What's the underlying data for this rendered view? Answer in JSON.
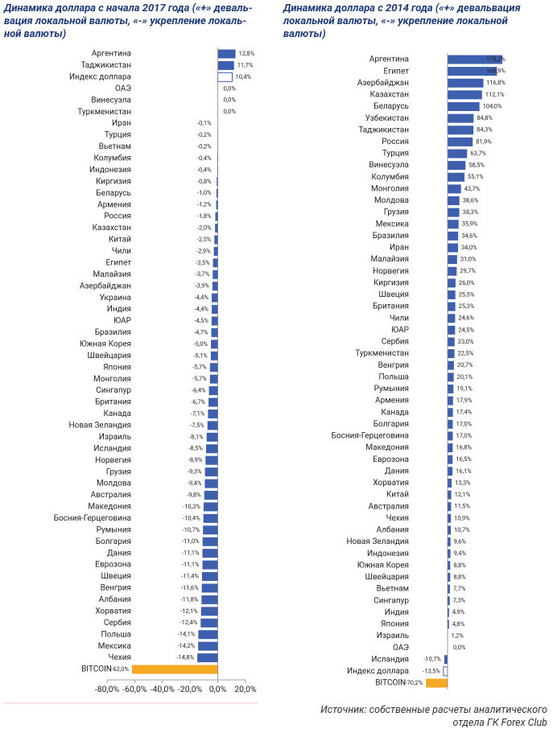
{
  "chart_data": [
    {
      "type": "bar",
      "orientation": "horizontal",
      "title": [
        "Динамика доллара с начала 2017 года («+» деваль-",
        "вация локальной валюты, «-» укрепление локаль-",
        "ной валюты)"
      ],
      "categories": [
        "Аргентина",
        "Таджикистан",
        "Индекс доллара",
        "ОАЭ",
        "Винесуэла",
        "Туркменистан",
        "Иран",
        "Турция",
        "Вьетнам",
        "Колумбия",
        "Индонезия",
        "Киргизия",
        "Беларусь",
        "Армения",
        "Россия",
        "Казахстан",
        "Китай",
        "Чили",
        "Египет",
        "Малайзия",
        "Азербайджан",
        "Украина",
        "Индия",
        "ЮАР",
        "Бразилия",
        "Южная Корея",
        "Швейцария",
        "Япония",
        "Монголия",
        "Сингапур",
        "Британия",
        "Канада",
        "Новая Зеландия",
        "Израиль",
        "Исландия",
        "Норвегия",
        "Грузия",
        "Молдова",
        "Австралия",
        "Македония",
        "Босния-Герцеговина",
        "Румыния",
        "Болгария",
        "Дания",
        "Еврозона",
        "Швеция",
        "Венгрия",
        "Албания",
        "Хорватия",
        "Сербия",
        "Польша",
        "Мексика",
        "Чехия",
        "BITCOIN"
      ],
      "values": [
        12.8,
        11.7,
        10.4,
        0,
        0,
        0,
        -0.1,
        -0.2,
        -0.2,
        -0.4,
        -0.4,
        -0.8,
        -1.0,
        -1.2,
        -1.8,
        -2.0,
        -2.5,
        -2.9,
        -3.5,
        -3.7,
        -3.9,
        -4.4,
        -4.4,
        -4.5,
        -4.7,
        -5.0,
        -5.1,
        -5.7,
        -5.7,
        -6.4,
        -6.7,
        -7.1,
        -7.5,
        -8.1,
        -8.5,
        -8.9,
        -9.3,
        -9.4,
        -9.8,
        -10.3,
        -10.4,
        -10.7,
        -11.0,
        -11.1,
        -11.1,
        -11.4,
        -11.6,
        -11.8,
        -12.1,
        -12.4,
        -14.1,
        -14.2,
        -14.8,
        -62.0
      ],
      "value_labels": [
        "12,8%",
        "11,7%",
        "10,4%",
        "0,0%",
        "0,0%",
        "0,0%",
        "-0,1%",
        "-0,2%",
        "-0,2%",
        "-0,4%",
        "-0,4%",
        "-0,8%",
        "-1,0%",
        "-1,2%",
        "-1,8%",
        "-2,0%",
        "-2,5%",
        "-2,9%",
        "-3,5%",
        "-3,7%",
        "-3,9%",
        "-4,4%",
        "-4,4%",
        "-4,5%",
        "-4,7%",
        "-5,0%",
        "-5,1%",
        "-5,7%",
        "-5,7%",
        "-6,4%",
        "-6,7%",
        "-7,1%",
        "-7,5%",
        "-8,1%",
        "-8,5%",
        "-8,9%",
        "-9,3%",
        "-9,4%",
        "-9,8%",
        "-10,3%",
        "-10,4%",
        "-10,7%",
        "-11,0%",
        "-11,1%",
        "-11,1%",
        "-11,4%",
        "-11,6%",
        "-11,8%",
        "-12,1%",
        "-12,4%",
        "-14,1%",
        "-14,2%",
        "-14,8%",
        "-62,0%"
      ],
      "colors": [
        "#3d5fae",
        "#3d5fae",
        "#ffffff",
        "#3d5fae",
        "#3d5fae",
        "#3d5fae",
        "#3d5fae",
        "#3d5fae",
        "#3d5fae",
        "#3d5fae",
        "#3d5fae",
        "#3d5fae",
        "#3d5fae",
        "#3d5fae",
        "#3d5fae",
        "#3d5fae",
        "#3d5fae",
        "#3d5fae",
        "#3d5fae",
        "#3d5fae",
        "#3d5fae",
        "#3d5fae",
        "#3d5fae",
        "#3d5fae",
        "#3d5fae",
        "#3d5fae",
        "#3d5fae",
        "#3d5fae",
        "#3d5fae",
        "#3d5fae",
        "#3d5fae",
        "#3d5fae",
        "#3d5fae",
        "#3d5fae",
        "#3d5fae",
        "#3d5fae",
        "#3d5fae",
        "#3d5fae",
        "#3d5fae",
        "#3d5fae",
        "#3d5fae",
        "#3d5fae",
        "#3d5fae",
        "#3d5fae",
        "#3d5fae",
        "#3d5fae",
        "#3d5fae",
        "#3d5fae",
        "#3d5fae",
        "#3d5fae",
        "#3d5fae",
        "#3d5fae",
        "#3d5fae",
        "#f6a821"
      ],
      "outline": "#3d5fae",
      "xlim": [
        -80,
        20
      ],
      "xticks": [
        {
          "value": -80,
          "label": "-80,0%"
        },
        {
          "value": -60,
          "label": "-60,0%"
        },
        {
          "value": -40,
          "label": "-40,0%"
        },
        {
          "value": -20,
          "label": "-20,0%"
        },
        {
          "value": 0,
          "label": "0,0%"
        },
        {
          "value": 20,
          "label": "20,0%"
        }
      ]
    },
    {
      "type": "bar",
      "orientation": "horizontal",
      "title": [
        "Динамика доллара с 2014 года («+» девальвация",
        "локальной валюты, «-» укрепление локальной",
        "валюты)"
      ],
      "categories": [
        "Аргентина",
        "Египет",
        "Азербайджан",
        "Казахстан",
        "Беларусь",
        "Узбекистан",
        "Таджикистан",
        "Россия",
        "Турция",
        "Винесуэла",
        "Колумбия",
        "Монголия",
        "Молдова",
        "Грузия",
        "Мексика",
        "Бразилия",
        "Иран",
        "Малайзия",
        "Норвегия",
        "Киргизия",
        "Швеция",
        "Британия",
        "Чили",
        "ЮАР",
        "Сербия",
        "Туркменистан",
        "Венгрия",
        "Польша",
        "Румыния",
        "Армения",
        "Канада",
        "Болгария",
        "Босния-Герцеговина",
        "Македония",
        "Еврозона",
        "Дания",
        "Хорватия",
        "Китай",
        "Австралия",
        "Чехия",
        "Албания",
        "Новая Зеландия",
        "Индонезия",
        "Южная Корея",
        "Швейцария",
        "Вьетнам",
        "Сингапур",
        "Индия",
        "Япония",
        "Израиль",
        "ОАЭ",
        "Исландия",
        "Индекс доллара",
        "BITCOIN"
      ],
      "values": [
        178.2,
        160.9,
        116.8,
        112.1,
        104.0,
        84.8,
        84.3,
        81.9,
        63.7,
        58.5,
        55.1,
        43.7,
        38.6,
        38.3,
        35.9,
        34.6,
        34.0,
        31.0,
        29.7,
        26.0,
        25.5,
        25.3,
        24.6,
        24.5,
        23.0,
        22.5,
        20.7,
        20.1,
        19.1,
        17.9,
        17.4,
        17.0,
        17.0,
        16.8,
        16.5,
        16.1,
        13.3,
        12.1,
        11.5,
        10.9,
        10.7,
        9.6,
        9.4,
        8.8,
        8.8,
        7.7,
        7.3,
        4.9,
        4.8,
        1.2,
        0,
        -10.7,
        -13.5,
        -70.2
      ],
      "value_labels": [
        "178,2%",
        "160,9%",
        "116,8%",
        "112,1%",
        "104,0%",
        "84,8%",
        "84,3%",
        "81,9%",
        "63,7%",
        "58,5%",
        "55,1%",
        "43,7%",
        "38,6%",
        "38,3%",
        "35,9%",
        "34,6%",
        "34,0%",
        "31,0%",
        "29,7%",
        "26,0%",
        "25,5%",
        "25,3%",
        "24,6%",
        "24,5%",
        "23,0%",
        "22,5%",
        "20,7%",
        "20,1%",
        "19,1%",
        "17,9%",
        "17,4%",
        "17,0%",
        "17,0%",
        "16,8%",
        "16,5%",
        "16,1%",
        "13,3%",
        "12,1%",
        "11,5%",
        "10,9%",
        "10,7%",
        "9,6%",
        "9,4%",
        "8,8%",
        "8,8%",
        "7,7%",
        "7,3%",
        "4,9%",
        "4,8%",
        "1,2%",
        "0,0%",
        "-10,7%",
        "-13,5%",
        "-70,2%"
      ],
      "colors": [
        "#3d5fae",
        "#3d5fae",
        "#3d5fae",
        "#3d5fae",
        "#3d5fae",
        "#3d5fae",
        "#3d5fae",
        "#3d5fae",
        "#3d5fae",
        "#3d5fae",
        "#3d5fae",
        "#3d5fae",
        "#3d5fae",
        "#3d5fae",
        "#3d5fae",
        "#3d5fae",
        "#3d5fae",
        "#3d5fae",
        "#3d5fae",
        "#3d5fae",
        "#3d5fae",
        "#3d5fae",
        "#3d5fae",
        "#3d5fae",
        "#3d5fae",
        "#3d5fae",
        "#3d5fae",
        "#3d5fae",
        "#3d5fae",
        "#3d5fae",
        "#3d5fae",
        "#3d5fae",
        "#3d5fae",
        "#3d5fae",
        "#3d5fae",
        "#3d5fae",
        "#3d5fae",
        "#3d5fae",
        "#3d5fae",
        "#3d5fae",
        "#3d5fae",
        "#3d5fae",
        "#3d5fae",
        "#3d5fae",
        "#3d5fae",
        "#3d5fae",
        "#3d5fae",
        "#3d5fae",
        "#3d5fae",
        "#3d5fae",
        "#3d5fae",
        "#3d5fae",
        "#ffffff",
        "#f6a821"
      ],
      "outline": "#3d5fae"
    }
  ],
  "source": [
    "Источник: собственные расчеты аналитического",
    "отдела ГК Forex Club"
  ]
}
